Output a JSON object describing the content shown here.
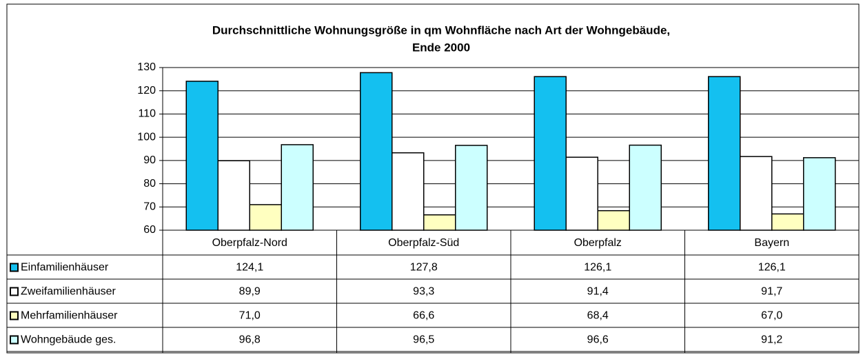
{
  "chart_data": {
    "type": "bar",
    "title": [
      "Durchschnittliche Wohnungsgröße in qm Wohnfläche nach Art der Wohngebäude,",
      "Ende 2000"
    ],
    "categories": [
      "Oberpfalz-Nord",
      "Oberpfalz-Süd",
      "Oberpfalz",
      "Bayern"
    ],
    "series": [
      {
        "name": "Einfamilienhäuser",
        "color": "#14c0f0",
        "values": [
          124.1,
          127.8,
          126.1,
          126.1
        ],
        "value_labels": [
          "124,1",
          "127,8",
          "126,1",
          "126,1"
        ]
      },
      {
        "name": "Zweifamilienhäuser",
        "color": "#ffffff",
        "values": [
          89.9,
          93.3,
          91.4,
          91.7
        ],
        "value_labels": [
          "89,9",
          "93,3",
          "91,4",
          "91,7"
        ]
      },
      {
        "name": "Mehrfamilienhäuser",
        "color": "#ffffc0",
        "values": [
          71.0,
          66.6,
          68.4,
          67.0
        ],
        "value_labels": [
          "71,0",
          "66,6",
          "68,4",
          "67,0"
        ]
      },
      {
        "name": "Wohngebäude ges.",
        "color": "#ccffff",
        "values": [
          96.8,
          96.5,
          96.6,
          91.2
        ],
        "value_labels": [
          "96,8",
          "96,5",
          "96,6",
          "91,2"
        ]
      }
    ],
    "ylim": [
      60,
      130
    ],
    "yticks": [
      60,
      70,
      80,
      90,
      100,
      110,
      120,
      130
    ],
    "grid": true
  }
}
